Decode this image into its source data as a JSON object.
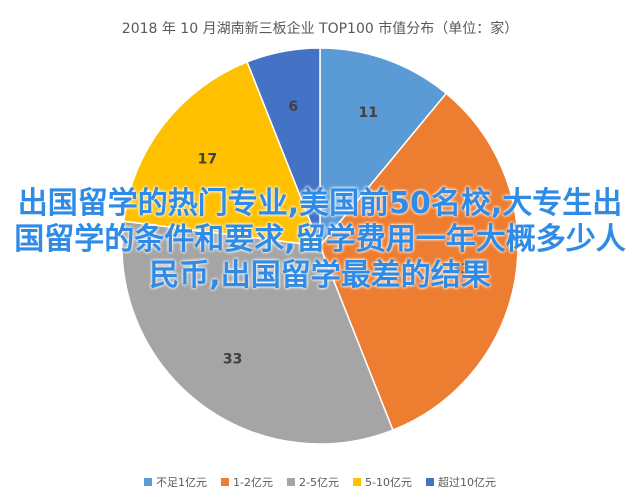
{
  "chart_data": {
    "type": "pie",
    "title": "2018 年 10 月湖南新三板企业 TOP100 市值分布（单位：家）",
    "categories": [
      "不足1亿元",
      "1-2亿元",
      "2-5亿元",
      "5-10亿元",
      "超过10亿元"
    ],
    "values": [
      11,
      33,
      33,
      17,
      6
    ],
    "colors": [
      "#5B9BD5",
      "#ED7D31",
      "#A5A5A5",
      "#FFC000",
      "#4472C4"
    ],
    "data_labels": [
      "11",
      "33",
      "33",
      "17",
      "6"
    ],
    "legend_position": "bottom",
    "grid": false
  },
  "overlay_text": "出国留学的热门专业,美国前50名校,大专生出国留学的条件和要求,留学费用一年大概多少人民币,出国留学最差的结果"
}
